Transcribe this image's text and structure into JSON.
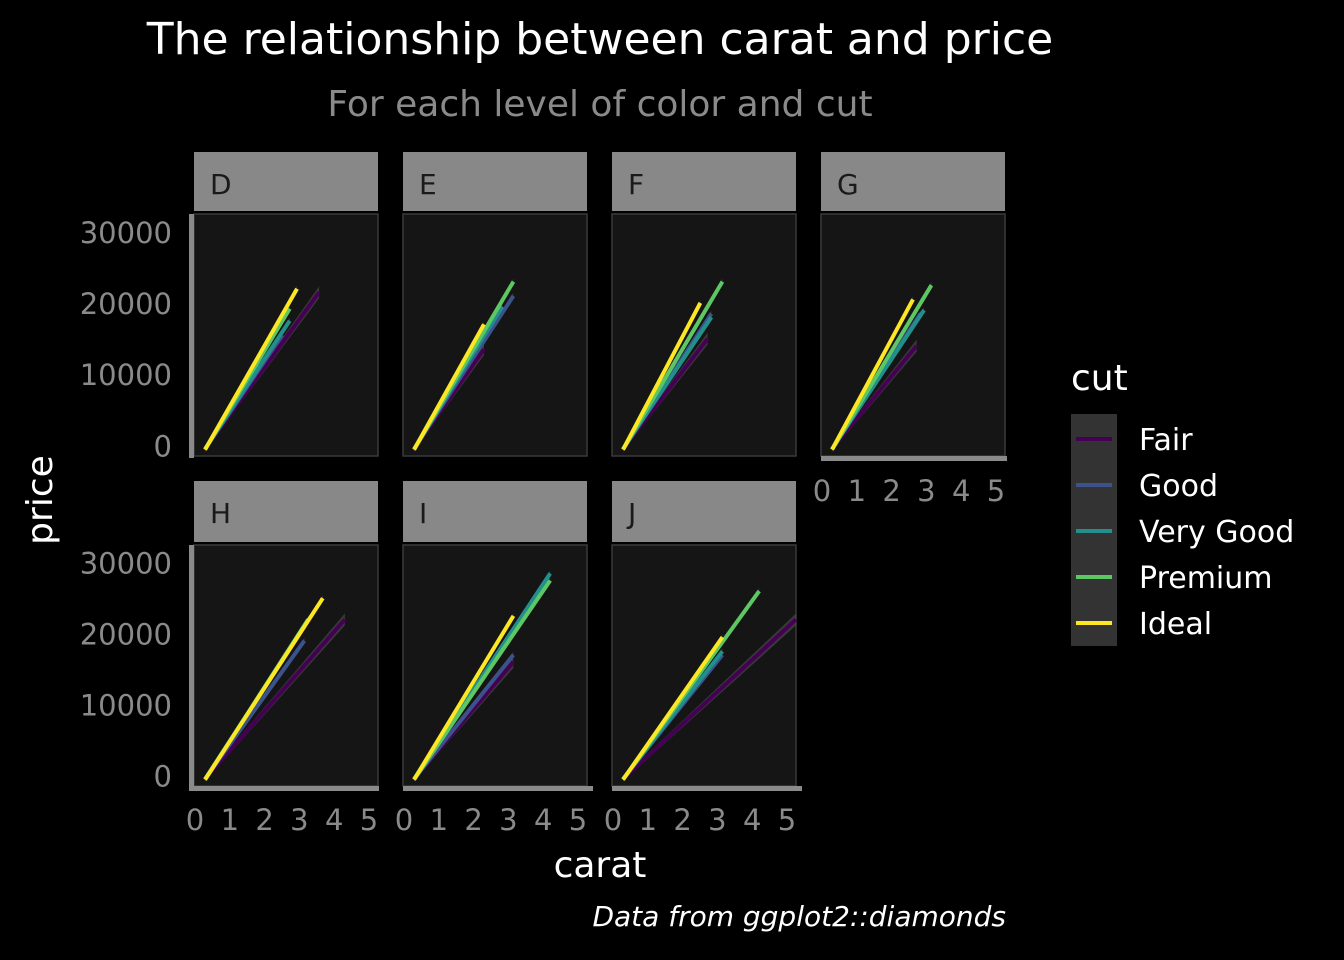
{
  "title": "The relationship between carat and price",
  "subtitle": "For each level of color and cut",
  "caption": "Data from ggplot2::diamonds",
  "chart_data": {
    "type": "line",
    "facet_by": "color",
    "xlabel": "carat",
    "ylabel": "price",
    "xlim": [
      0,
      5
    ],
    "ylim": [
      -1500,
      32500
    ],
    "xticks": [
      0,
      1,
      2,
      3,
      4,
      5
    ],
    "yticks": [
      0,
      10000,
      20000,
      30000
    ],
    "legend": {
      "title": "cut",
      "position": "right",
      "entries": [
        {
          "name": "Fair",
          "color": "#440154"
        },
        {
          "name": "Good",
          "color": "#3B528B"
        },
        {
          "name": "Very Good",
          "color": "#21908C"
        },
        {
          "name": "Premium",
          "color": "#5DC863"
        },
        {
          "name": "Ideal",
          "color": "#FDE725"
        }
      ]
    },
    "panels": [
      {
        "label": "D",
        "lines": [
          {
            "cut": "Fair",
            "x": [
              0.3,
              3.4
            ],
            "y": [
              -500,
              21500
            ]
          },
          {
            "cut": "Good",
            "x": [
              0.3,
              2.4
            ],
            "y": [
              -500,
              15500
            ]
          },
          {
            "cut": "Very Good",
            "x": [
              0.3,
              2.6
            ],
            "y": [
              -500,
              17500
            ]
          },
          {
            "cut": "Premium",
            "x": [
              0.3,
              2.6
            ],
            "y": [
              -600,
              19200
            ]
          },
          {
            "cut": "Ideal",
            "x": [
              0.3,
              2.8
            ],
            "y": [
              -600,
              22000
            ]
          }
        ]
      },
      {
        "label": "E",
        "lines": [
          {
            "cut": "Fair",
            "x": [
              0.3,
              2.2
            ],
            "y": [
              -500,
              13500
            ]
          },
          {
            "cut": "Good",
            "x": [
              0.3,
              3.0
            ],
            "y": [
              -500,
              21000
            ]
          },
          {
            "cut": "Very Good",
            "x": [
              0.3,
              2.7
            ],
            "y": [
              -500,
              19500
            ]
          },
          {
            "cut": "Premium",
            "x": [
              0.3,
              3.0
            ],
            "y": [
              -600,
              23000
            ]
          },
          {
            "cut": "Ideal",
            "x": [
              0.3,
              2.2
            ],
            "y": [
              -600,
              17000
            ]
          }
        ]
      },
      {
        "label": "F",
        "lines": [
          {
            "cut": "Fair",
            "x": [
              0.3,
              2.6
            ],
            "y": [
              -500,
              15000
            ]
          },
          {
            "cut": "Good",
            "x": [
              0.3,
              2.7
            ],
            "y": [
              -500,
              18500
            ]
          },
          {
            "cut": "Very Good",
            "x": [
              0.3,
              2.7
            ],
            "y": [
              -500,
              18000
            ]
          },
          {
            "cut": "Premium",
            "x": [
              0.3,
              3.0
            ],
            "y": [
              -600,
              23000
            ]
          },
          {
            "cut": "Ideal",
            "x": [
              0.3,
              2.4
            ],
            "y": [
              -600,
              20000
            ]
          }
        ]
      },
      {
        "label": "G",
        "lines": [
          {
            "cut": "Fair",
            "x": [
              0.3,
              2.6
            ],
            "y": [
              -500,
              14000
            ]
          },
          {
            "cut": "Good",
            "x": [
              0.3,
              2.7
            ],
            "y": [
              -500,
              18500
            ]
          },
          {
            "cut": "Very Good",
            "x": [
              0.3,
              2.8
            ],
            "y": [
              -500,
              19000
            ]
          },
          {
            "cut": "Premium",
            "x": [
              0.3,
              3.0
            ],
            "y": [
              -600,
              22500
            ]
          },
          {
            "cut": "Ideal",
            "x": [
              0.3,
              2.5
            ],
            "y": [
              -600,
              20500
            ]
          }
        ]
      },
      {
        "label": "H",
        "lines": [
          {
            "cut": "Fair",
            "x": [
              0.3,
              4.1
            ],
            "y": [
              -500,
              22000
            ]
          },
          {
            "cut": "Good",
            "x": [
              0.3,
              3.0
            ],
            "y": [
              -500,
              19000
            ]
          },
          {
            "cut": "Very Good",
            "x": [
              0.3,
              3.0
            ],
            "y": [
              -500,
              21000
            ]
          },
          {
            "cut": "Premium",
            "x": [
              0.3,
              3.1
            ],
            "y": [
              -600,
              22000
            ]
          },
          {
            "cut": "Ideal",
            "x": [
              0.3,
              3.5
            ],
            "y": [
              -600,
              25000
            ]
          }
        ]
      },
      {
        "label": "I",
        "lines": [
          {
            "cut": "Fair",
            "x": [
              0.3,
              3.0
            ],
            "y": [
              -500,
              16000
            ]
          },
          {
            "cut": "Good",
            "x": [
              0.3,
              3.0
            ],
            "y": [
              -500,
              17000
            ]
          },
          {
            "cut": "Very Good",
            "x": [
              0.3,
              4.0
            ],
            "y": [
              -500,
              28500
            ]
          },
          {
            "cut": "Premium",
            "x": [
              0.3,
              4.0
            ],
            "y": [
              -600,
              27500
            ]
          },
          {
            "cut": "Ideal",
            "x": [
              0.3,
              3.0
            ],
            "y": [
              -600,
              22500
            ]
          }
        ]
      },
      {
        "label": "J",
        "lines": [
          {
            "cut": "Fair",
            "x": [
              0.3,
              5.0
            ],
            "y": [
              -500,
              22000
            ]
          },
          {
            "cut": "Good",
            "x": [
              0.3,
              3.0
            ],
            "y": [
              -500,
              17000
            ]
          },
          {
            "cut": "Very Good",
            "x": [
              0.3,
              3.0
            ],
            "y": [
              -500,
              17500
            ]
          },
          {
            "cut": "Premium",
            "x": [
              0.3,
              4.0
            ],
            "y": [
              -600,
              26000
            ]
          },
          {
            "cut": "Ideal",
            "x": [
              0.3,
              3.0
            ],
            "y": [
              -600,
              19500
            ]
          }
        ]
      }
    ]
  }
}
